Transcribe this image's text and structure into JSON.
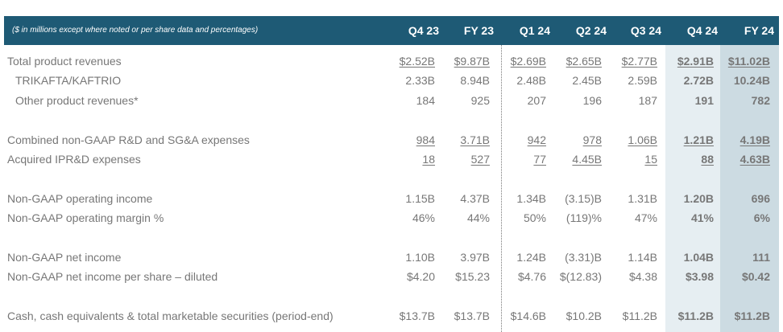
{
  "header": {
    "note": "($ in millions except where noted or per share data and percentages)",
    "columns": [
      "Q4 23",
      "FY 23",
      "Q1 24",
      "Q2 24",
      "Q3 24",
      "Q4 24",
      "FY 24"
    ]
  },
  "rows": [
    {
      "label": "Total product revenues",
      "values": [
        "$2.52B",
        "$9.87B",
        "$2.69B",
        "$2.65B",
        "$2.77B",
        "$2.91B",
        "$11.02B"
      ]
    },
    {
      "label": "TRIKAFTA/KAFTRIO",
      "values": [
        "2.33B",
        "8.94B",
        "2.48B",
        "2.45B",
        "2.59B",
        "2.72B",
        "10.24B"
      ]
    },
    {
      "label": "Other product revenues*",
      "values": [
        "184",
        "925",
        "207",
        "196",
        "187",
        "191",
        "782"
      ]
    },
    {
      "label": "Combined non-GAAP R&D and SG&A expenses",
      "values": [
        "984",
        "3.71B",
        "942",
        "978",
        "1.06B",
        "1.21B",
        "4.19B"
      ]
    },
    {
      "label": "Acquired IPR&D expenses",
      "values": [
        "18",
        "527",
        "77",
        "4.45B",
        "15",
        "88",
        "4.63B"
      ]
    },
    {
      "label": "Non-GAAP operating income",
      "values": [
        "1.15B",
        "4.37B",
        "1.34B",
        "(3.15)B",
        "1.31B",
        "1.20B",
        "696"
      ]
    },
    {
      "label": "Non-GAAP operating margin %",
      "values": [
        "46%",
        "44%",
        "50%",
        "(119)%",
        "47%",
        "41%",
        "6%"
      ]
    },
    {
      "label": "Non-GAAP net income",
      "values": [
        "1.10B",
        "3.97B",
        "1.24B",
        "(3.31)B",
        "1.14B",
        "1.04B",
        "111"
      ]
    },
    {
      "label": "Non-GAAP net income per share – diluted",
      "values": [
        "$4.20",
        "$15.23",
        "$4.76",
        "$(12.83)",
        "$4.38",
        "$3.98",
        "$0.42"
      ]
    },
    {
      "label": "Cash, cash equivalents & total marketable securities (period-end)",
      "values": [
        "$13.7B",
        "$13.7B",
        "$14.6B",
        "$10.2B",
        "$11.2B",
        "$11.2B",
        "$11.2B"
      ]
    }
  ]
}
